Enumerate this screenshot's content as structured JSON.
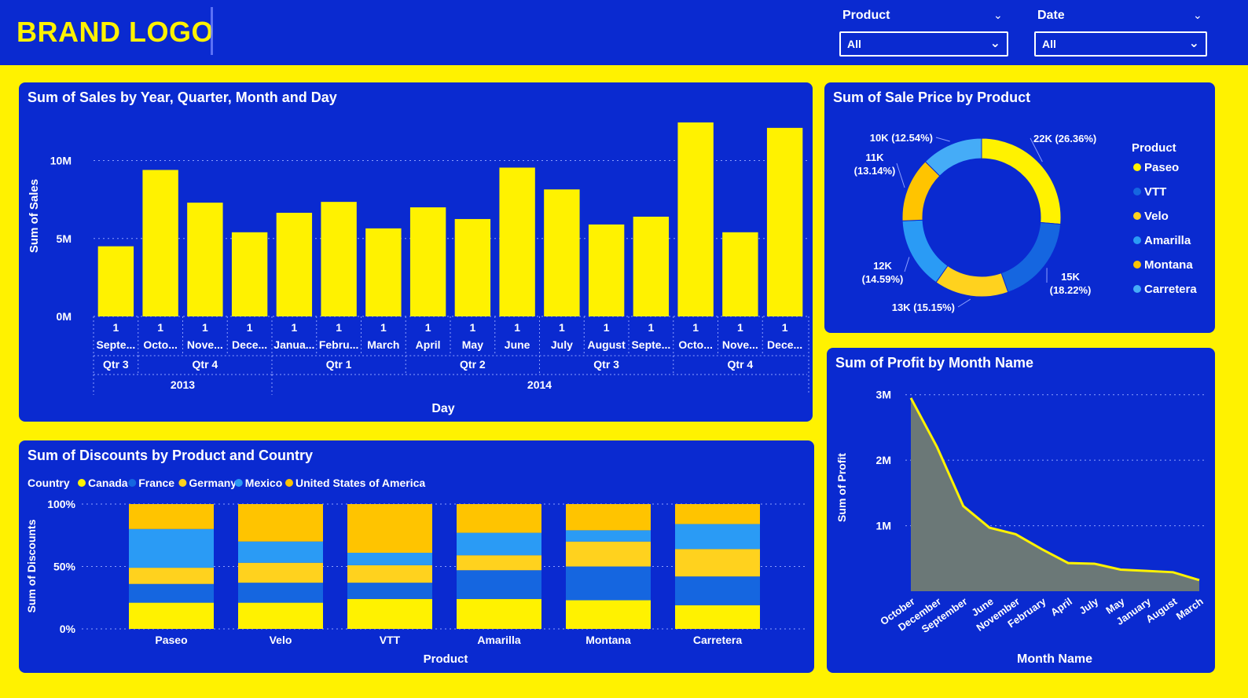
{
  "header": {
    "logo": "BRAND LOGO",
    "filters": [
      {
        "title": "Product",
        "value": "All"
      },
      {
        "title": "Date",
        "value": "All"
      }
    ]
  },
  "colors": {
    "background": "#fff200",
    "panel": "#0a2ad0",
    "yellow": "#fff200",
    "gold": "#ffc400",
    "blue": "#1566e0",
    "light_blue": "#2a9bf5",
    "area_fill": "#6b7877"
  },
  "chart_data": [
    {
      "type": "bar",
      "title": "Sum of Sales by Year, Quarter, Month and Day",
      "xlabel": "Day",
      "ylabel": "Sum of Sales",
      "ylim": [
        0,
        13000000
      ],
      "yticks": [
        {
          "value": 0,
          "label": "0M"
        },
        {
          "value": 5000000,
          "label": "5M"
        },
        {
          "value": 10000000,
          "label": "10M"
        }
      ],
      "grid": true,
      "categories": [
        {
          "day": "1",
          "month": "Septe...",
          "quarter": "Qtr 3",
          "year": "2013"
        },
        {
          "day": "1",
          "month": "Octo...",
          "quarter": "Qtr 4",
          "year": "2013"
        },
        {
          "day": "1",
          "month": "Nove...",
          "quarter": "Qtr 4",
          "year": "2013"
        },
        {
          "day": "1",
          "month": "Dece...",
          "quarter": "Qtr 4",
          "year": "2013"
        },
        {
          "day": "1",
          "month": "Janua...",
          "quarter": "Qtr 1",
          "year": "2014"
        },
        {
          "day": "1",
          "month": "Febru...",
          "quarter": "Qtr 1",
          "year": "2014"
        },
        {
          "day": "1",
          "month": "March",
          "quarter": "Qtr 1",
          "year": "2014"
        },
        {
          "day": "1",
          "month": "April",
          "quarter": "Qtr 2",
          "year": "2014"
        },
        {
          "day": "1",
          "month": "May",
          "quarter": "Qtr 2",
          "year": "2014"
        },
        {
          "day": "1",
          "month": "June",
          "quarter": "Qtr 2",
          "year": "2014"
        },
        {
          "day": "1",
          "month": "July",
          "quarter": "Qtr 3",
          "year": "2014"
        },
        {
          "day": "1",
          "month": "August",
          "quarter": "Qtr 3",
          "year": "2014"
        },
        {
          "day": "1",
          "month": "Septe...",
          "quarter": "Qtr 3",
          "year": "2014"
        },
        {
          "day": "1",
          "month": "Octo...",
          "quarter": "Qtr 4",
          "year": "2014"
        },
        {
          "day": "1",
          "month": "Nove...",
          "quarter": "Qtr 4",
          "year": "2014"
        },
        {
          "day": "1",
          "month": "Dece...",
          "quarter": "Qtr 4",
          "year": "2014"
        }
      ],
      "values": [
        4500000,
        9400000,
        7300000,
        5400000,
        6650000,
        7350000,
        5650000,
        7000000,
        6250000,
        9550000,
        8150000,
        5900000,
        6400000,
        12450000,
        5400000,
        12100000
      ]
    },
    {
      "type": "pie",
      "title": "Sum of Sale Price by Product",
      "legend_title": "Product",
      "legend_position": "right",
      "slices": [
        {
          "name": "Paseo",
          "value": 22000,
          "label": "22K (26.36%)",
          "percent": 26.36,
          "color": "#fff200"
        },
        {
          "name": "VTT",
          "value": 15000,
          "label": "15K (18.22%)",
          "percent": 18.22,
          "color": "#1566e0"
        },
        {
          "name": "Velo",
          "value": 13000,
          "label": "13K (15.15%)",
          "percent": 15.15,
          "color": "#ffd21e"
        },
        {
          "name": "Amarilla",
          "value": 12000,
          "label": "12K (14.59%)",
          "percent": 14.59,
          "color": "#2a9bf5"
        },
        {
          "name": "Montana",
          "value": 11000,
          "label": "11K (13.14%)",
          "percent": 13.14,
          "color": "#ffc400"
        },
        {
          "name": "Carretera",
          "value": 10000,
          "label": "10K (12.54%)",
          "percent": 12.54,
          "color": "#45acf7"
        }
      ]
    },
    {
      "type": "bar",
      "stacked": "100%",
      "title": "Sum of Discounts by Product and Country",
      "xlabel": "Product",
      "ylabel": "Sum of Discounts",
      "legend_title": "Country",
      "legend_position": "top-left",
      "yticks": [
        {
          "value": 0,
          "label": "0%"
        },
        {
          "value": 50,
          "label": "50%"
        },
        {
          "value": 100,
          "label": "100%"
        }
      ],
      "categories": [
        "Paseo",
        "Velo",
        "VTT",
        "Amarilla",
        "Montana",
        "Carretera"
      ],
      "series": [
        {
          "name": "Canada",
          "color": "#fff200",
          "values": [
            21,
            21,
            24,
            24,
            23,
            19
          ]
        },
        {
          "name": "France",
          "color": "#1566e0",
          "values": [
            15,
            16,
            13,
            23,
            27,
            23
          ]
        },
        {
          "name": "Germany",
          "color": "#ffd21e",
          "values": [
            13,
            16,
            14,
            12,
            20,
            22
          ]
        },
        {
          "name": "Mexico",
          "color": "#2a9bf5",
          "values": [
            31,
            17,
            10,
            18,
            9,
            20
          ]
        },
        {
          "name": "United States of America",
          "color": "#ffc400",
          "values": [
            20,
            30,
            39,
            23,
            21,
            16
          ]
        }
      ]
    },
    {
      "type": "area",
      "title": "Sum of Profit by Month Name",
      "xlabel": "Month Name",
      "ylabel": "Sum of Profit",
      "ylim": [
        0,
        3500000
      ],
      "yticks": [
        {
          "value": 1000000,
          "label": "1M"
        },
        {
          "value": 2000000,
          "label": "2M"
        },
        {
          "value": 3000000,
          "label": "3M"
        }
      ],
      "categories": [
        "October",
        "December",
        "September",
        "June",
        "November",
        "February",
        "April",
        "July",
        "May",
        "January",
        "August",
        "March"
      ],
      "values": [
        2950000,
        2200000,
        1300000,
        970000,
        870000,
        640000,
        430000,
        420000,
        330000,
        310000,
        290000,
        170000
      ]
    }
  ]
}
